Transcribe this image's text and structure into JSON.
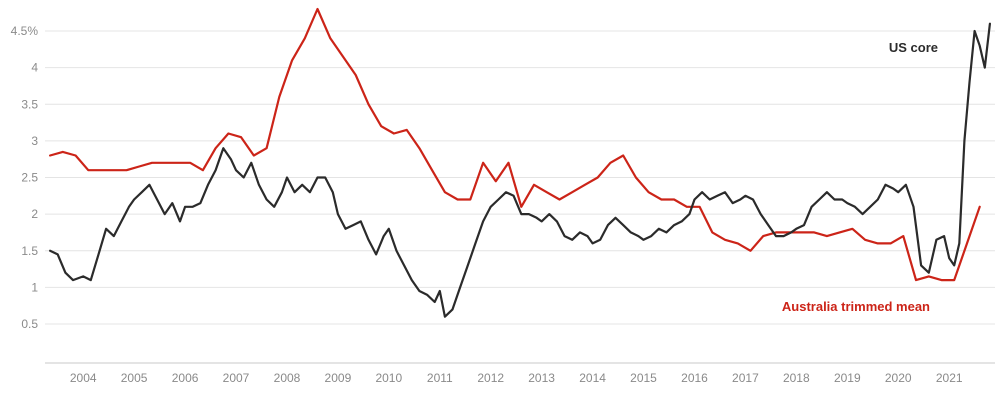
{
  "chart_data": {
    "type": "line",
    "title": "",
    "xlabel": "",
    "ylabel": "",
    "grid": true,
    "legend_position": "inline-annotations",
    "ylim": [
      0.5,
      4.5
    ],
    "xlim": [
      2003.25,
      2021.9
    ],
    "y_ticks": [
      0.5,
      1,
      1.5,
      2,
      2.5,
      3,
      3.5,
      4,
      4.5
    ],
    "y_tick_labels": [
      "0.5",
      "1",
      "1.5",
      "2",
      "2.5",
      "3",
      "3.5",
      "4",
      "4.5%"
    ],
    "x_ticks": [
      2004,
      2005,
      2006,
      2007,
      2008,
      2009,
      2010,
      2011,
      2012,
      2013,
      2014,
      2015,
      2016,
      2017,
      2018,
      2019,
      2020,
      2021
    ],
    "x_tick_labels": [
      "2004",
      "2005",
      "2006",
      "2007",
      "2008",
      "2009",
      "2010",
      "2011",
      "2012",
      "2013",
      "2014",
      "2015",
      "2016",
      "2017",
      "2018",
      "2019",
      "2020",
      "2021"
    ],
    "colors": {
      "grid": "#e4e4e4",
      "axis": "#c9c9c9",
      "tick_text": "#8a8a8a",
      "background": "#ffffff"
    },
    "series": [
      {
        "name": "US core",
        "color": "#2b2b2b",
        "annotation": {
          "text": "US core"
        },
        "x": [
          2003.35,
          2003.5,
          2003.65,
          2003.8,
          2004.0,
          2004.15,
          2004.3,
          2004.45,
          2004.6,
          2004.75,
          2004.9,
          2005.0,
          2005.15,
          2005.3,
          2005.45,
          2005.6,
          2005.75,
          2005.9,
          2006.0,
          2006.15,
          2006.3,
          2006.45,
          2006.6,
          2006.75,
          2006.9,
          2007.0,
          2007.15,
          2007.3,
          2007.45,
          2007.6,
          2007.75,
          2007.9,
          2008.0,
          2008.15,
          2008.3,
          2008.45,
          2008.6,
          2008.75,
          2008.9,
          2009.0,
          2009.15,
          2009.3,
          2009.45,
          2009.6,
          2009.75,
          2009.9,
          2010.0,
          2010.15,
          2010.3,
          2010.45,
          2010.6,
          2010.75,
          2010.9,
          2011.0,
          2011.1,
          2011.25,
          2011.4,
          2011.55,
          2011.7,
          2011.85,
          2012.0,
          2012.15,
          2012.3,
          2012.45,
          2012.6,
          2012.75,
          2012.9,
          2013.0,
          2013.15,
          2013.3,
          2013.45,
          2013.6,
          2013.75,
          2013.9,
          2014.0,
          2014.15,
          2014.3,
          2014.45,
          2014.6,
          2014.75,
          2014.9,
          2015.0,
          2015.15,
          2015.3,
          2015.45,
          2015.6,
          2015.75,
          2015.9,
          2016.0,
          2016.15,
          2016.3,
          2016.45,
          2016.6,
          2016.75,
          2016.9,
          2017.0,
          2017.15,
          2017.3,
          2017.45,
          2017.6,
          2017.75,
          2017.9,
          2018.0,
          2018.15,
          2018.3,
          2018.45,
          2018.6,
          2018.75,
          2018.9,
          2019.0,
          2019.15,
          2019.3,
          2019.45,
          2019.6,
          2019.75,
          2019.9,
          2020.0,
          2020.15,
          2020.3,
          2020.45,
          2020.6,
          2020.75,
          2020.9,
          2021.0,
          2021.1,
          2021.2,
          2021.3,
          2021.4,
          2021.5,
          2021.6,
          2021.7,
          2021.8
        ],
        "values": [
          1.5,
          1.45,
          1.2,
          1.1,
          1.15,
          1.1,
          1.45,
          1.8,
          1.7,
          1.9,
          2.1,
          2.2,
          2.3,
          2.4,
          2.2,
          2.0,
          2.15,
          1.9,
          2.1,
          2.1,
          2.15,
          2.4,
          2.6,
          2.9,
          2.75,
          2.6,
          2.5,
          2.7,
          2.4,
          2.2,
          2.1,
          2.3,
          2.5,
          2.3,
          2.4,
          2.3,
          2.5,
          2.5,
          2.3,
          2.0,
          1.8,
          1.85,
          1.9,
          1.65,
          1.45,
          1.7,
          1.8,
          1.5,
          1.3,
          1.1,
          0.95,
          0.9,
          0.8,
          0.95,
          0.6,
          0.7,
          1.0,
          1.3,
          1.6,
          1.9,
          2.1,
          2.2,
          2.3,
          2.25,
          2.0,
          2.0,
          1.95,
          1.9,
          2.0,
          1.9,
          1.7,
          1.65,
          1.75,
          1.7,
          1.6,
          1.65,
          1.85,
          1.95,
          1.85,
          1.75,
          1.7,
          1.65,
          1.7,
          1.8,
          1.75,
          1.85,
          1.9,
          2.0,
          2.2,
          2.3,
          2.2,
          2.25,
          2.3,
          2.15,
          2.2,
          2.25,
          2.2,
          2.0,
          1.85,
          1.7,
          1.7,
          1.75,
          1.8,
          1.85,
          2.1,
          2.2,
          2.3,
          2.2,
          2.2,
          2.15,
          2.1,
          2.0,
          2.1,
          2.2,
          2.4,
          2.35,
          2.3,
          2.4,
          2.1,
          1.3,
          1.2,
          1.65,
          1.7,
          1.4,
          1.3,
          1.6,
          3.0,
          3.8,
          4.5,
          4.3,
          4.0,
          4.6
        ]
      },
      {
        "name": "Australia trimmed mean",
        "color": "#cc2418",
        "annotation": {
          "text": "Australia trimmed mean"
        },
        "x": [
          2003.35,
          2003.6,
          2003.85,
          2004.1,
          2004.35,
          2004.6,
          2004.85,
          2005.1,
          2005.35,
          2005.6,
          2005.85,
          2006.1,
          2006.35,
          2006.6,
          2006.85,
          2007.1,
          2007.35,
          2007.6,
          2007.85,
          2008.1,
          2008.35,
          2008.6,
          2008.85,
          2009.1,
          2009.35,
          2009.6,
          2009.85,
          2010.1,
          2010.35,
          2010.6,
          2010.85,
          2011.1,
          2011.35,
          2011.6,
          2011.85,
          2012.1,
          2012.35,
          2012.6,
          2012.85,
          2013.1,
          2013.35,
          2013.6,
          2013.85,
          2014.1,
          2014.35,
          2014.6,
          2014.85,
          2015.1,
          2015.35,
          2015.6,
          2015.85,
          2016.1,
          2016.35,
          2016.6,
          2016.85,
          2017.1,
          2017.35,
          2017.6,
          2017.85,
          2018.1,
          2018.35,
          2018.6,
          2018.85,
          2019.1,
          2019.35,
          2019.6,
          2019.85,
          2020.1,
          2020.35,
          2020.6,
          2020.85,
          2021.1,
          2021.35,
          2021.6
        ],
        "values": [
          2.8,
          2.85,
          2.8,
          2.6,
          2.6,
          2.6,
          2.6,
          2.65,
          2.7,
          2.7,
          2.7,
          2.7,
          2.6,
          2.9,
          3.1,
          3.05,
          2.8,
          2.9,
          3.6,
          4.1,
          4.4,
          4.8,
          4.4,
          4.15,
          3.9,
          3.5,
          3.2,
          3.1,
          3.15,
          2.9,
          2.6,
          2.3,
          2.2,
          2.2,
          2.7,
          2.45,
          2.7,
          2.1,
          2.4,
          2.3,
          2.2,
          2.3,
          2.4,
          2.5,
          2.7,
          2.8,
          2.5,
          2.3,
          2.2,
          2.2,
          2.1,
          2.1,
          1.75,
          1.65,
          1.6,
          1.5,
          1.7,
          1.75,
          1.75,
          1.75,
          1.75,
          1.7,
          1.75,
          1.8,
          1.65,
          1.6,
          1.6,
          1.7,
          1.1,
          1.15,
          1.1,
          1.1,
          1.6,
          2.1
        ]
      }
    ]
  }
}
